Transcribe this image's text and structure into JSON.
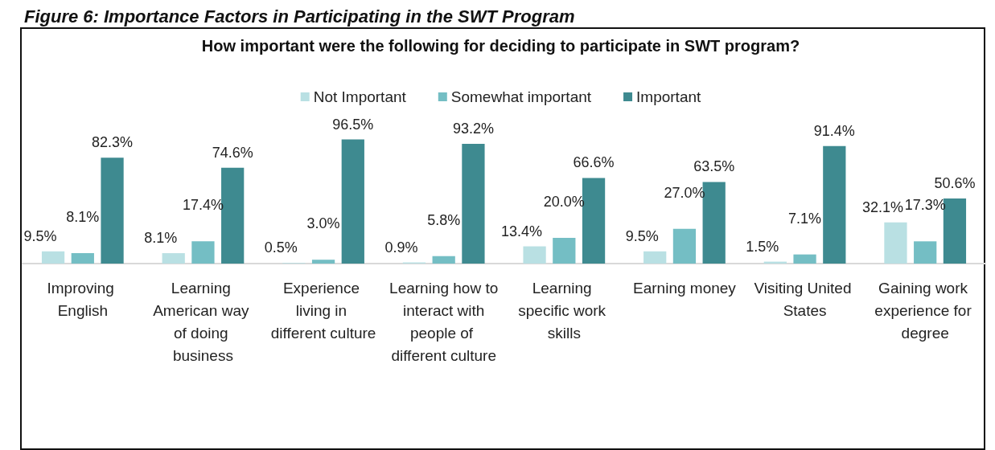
{
  "chart_data": {
    "type": "bar",
    "title": "How important were the following for deciding to participate in SWT program?",
    "annotations": [
      "Figure 6: Importance Factors in Participating in the SWT Program"
    ],
    "categories": [
      "Improving English",
      "Learning American way of doing business",
      "Experience living in different culture",
      "Learning how to interact with people of different culture",
      "Learning specific work skills",
      "Earning money",
      "Visiting United States",
      "Gaining work experience for degree"
    ],
    "series": [
      {
        "name": "Not Important",
        "color": "#b9e0e3",
        "values": [
          9.5,
          8.1,
          0.5,
          0.9,
          13.4,
          9.5,
          1.5,
          32.1
        ],
        "value_labels": [
          "9.5%",
          "8.1%",
          "0.5%",
          "0.9%",
          "13.4%",
          "9.5%",
          "1.5%",
          "32.1%"
        ]
      },
      {
        "name": "Somewhat important",
        "color": "#74bec4",
        "values": [
          8.1,
          17.4,
          3.0,
          5.8,
          20.0,
          27.0,
          7.1,
          17.3
        ],
        "value_labels": [
          "8.1%",
          "17.4%",
          "3.0%",
          "5.8%",
          "20.0%",
          "27.0%",
          "7.1%",
          "17.3%"
        ]
      },
      {
        "name": "Important",
        "color": "#3e8a90",
        "values": [
          82.3,
          74.6,
          96.5,
          93.2,
          66.6,
          63.5,
          91.4,
          50.6
        ],
        "value_labels": [
          "82.3%",
          "74.6%",
          "96.5%",
          "93.2%",
          "66.6%",
          "63.5%",
          "91.4%",
          "50.6%"
        ]
      }
    ],
    "legend": "top"
  }
}
